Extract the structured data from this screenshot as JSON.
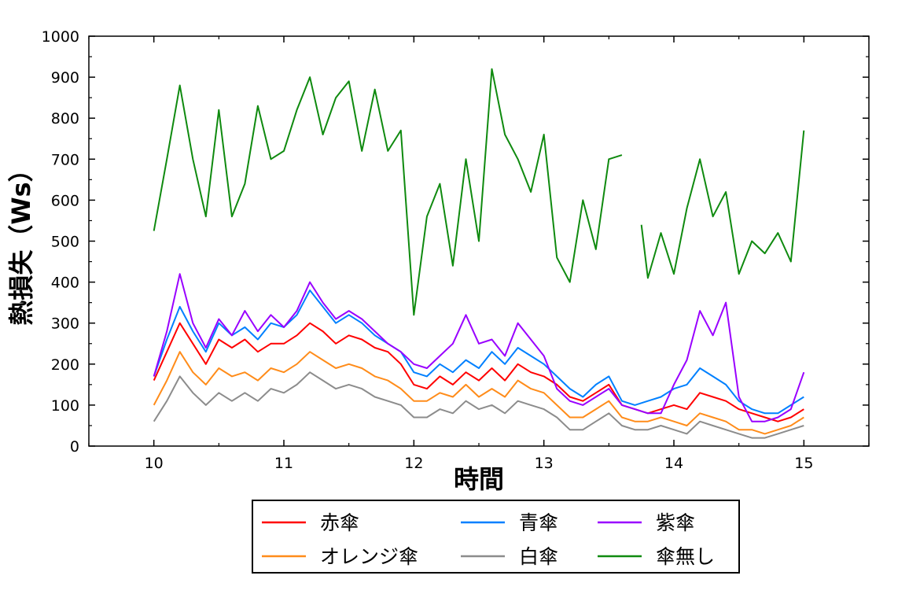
{
  "chart_data": {
    "type": "line",
    "xlabel": "時間",
    "ylabel": "熱損失（Ws）",
    "xlim": [
      9.5,
      15.5
    ],
    "ylim": [
      0,
      1000
    ],
    "xticks": [
      10,
      11,
      12,
      13,
      14,
      15
    ],
    "yticks": [
      0,
      100,
      200,
      300,
      400,
      500,
      600,
      700,
      800,
      900,
      1000
    ],
    "grid": false,
    "legend_position": "bottom-center",
    "series": [
      {
        "name": "赤傘",
        "color": "#ff0000",
        "x": [
          10.0,
          10.1,
          10.2,
          10.3,
          10.4,
          10.5,
          10.6,
          10.7,
          10.8,
          10.9,
          11.0,
          11.1,
          11.2,
          11.3,
          11.4,
          11.5,
          11.6,
          11.7,
          11.8,
          11.9,
          12.0,
          12.1,
          12.2,
          12.3,
          12.4,
          12.5,
          12.6,
          12.7,
          12.8,
          12.9,
          13.0,
          13.1,
          13.2,
          13.3,
          13.4,
          13.5,
          13.6,
          13.7,
          13.8,
          13.9,
          14.0,
          14.1,
          14.2,
          14.3,
          14.4,
          14.5,
          14.6,
          14.7,
          14.8,
          14.9,
          15.0
        ],
        "y": [
          160,
          230,
          300,
          250,
          200,
          260,
          240,
          260,
          230,
          250,
          250,
          270,
          300,
          280,
          250,
          270,
          260,
          240,
          230,
          200,
          150,
          140,
          170,
          150,
          180,
          160,
          190,
          160,
          200,
          180,
          170,
          150,
          120,
          110,
          130,
          150,
          100,
          90,
          80,
          90,
          100,
          90,
          130,
          120,
          110,
          90,
          80,
          70,
          60,
          70,
          90
        ]
      },
      {
        "name": "青傘",
        "color": "#0080ff",
        "x": [
          10.0,
          10.1,
          10.2,
          10.3,
          10.4,
          10.5,
          10.6,
          10.7,
          10.8,
          10.9,
          11.0,
          11.1,
          11.2,
          11.3,
          11.4,
          11.5,
          11.6,
          11.7,
          11.8,
          11.9,
          12.0,
          12.1,
          12.2,
          12.3,
          12.4,
          12.5,
          12.6,
          12.7,
          12.8,
          12.9,
          13.0,
          13.1,
          13.2,
          13.3,
          13.4,
          13.5,
          13.6,
          13.7,
          13.8,
          13.9,
          14.0,
          14.1,
          14.2,
          14.3,
          14.4,
          14.5,
          14.6,
          14.7,
          14.8,
          14.9,
          15.0
        ],
        "y": [
          170,
          260,
          340,
          280,
          230,
          300,
          270,
          290,
          260,
          300,
          290,
          320,
          380,
          340,
          300,
          320,
          300,
          270,
          250,
          230,
          180,
          170,
          200,
          180,
          210,
          190,
          230,
          200,
          240,
          220,
          200,
          170,
          140,
          120,
          150,
          170,
          110,
          100,
          110,
          120,
          140,
          150,
          190,
          170,
          150,
          110,
          90,
          80,
          80,
          100,
          120
        ]
      },
      {
        "name": "紫傘",
        "color": "#9900ff",
        "x": [
          10.0,
          10.1,
          10.2,
          10.3,
          10.4,
          10.5,
          10.6,
          10.7,
          10.8,
          10.9,
          11.0,
          11.1,
          11.2,
          11.3,
          11.4,
          11.5,
          11.6,
          11.7,
          11.8,
          11.9,
          12.0,
          12.1,
          12.2,
          12.3,
          12.4,
          12.5,
          12.6,
          12.7,
          12.8,
          12.9,
          13.0,
          13.1,
          13.2,
          13.3,
          13.4,
          13.5,
          13.6,
          13.7,
          13.8,
          13.9,
          14.0,
          14.1,
          14.2,
          14.3,
          14.4,
          14.5,
          14.6,
          14.7,
          14.8,
          14.9,
          15.0
        ],
        "y": [
          170,
          280,
          420,
          300,
          240,
          310,
          270,
          330,
          280,
          320,
          290,
          330,
          400,
          350,
          310,
          330,
          310,
          280,
          250,
          230,
          200,
          190,
          220,
          250,
          320,
          250,
          260,
          220,
          300,
          260,
          220,
          140,
          110,
          100,
          120,
          140,
          100,
          90,
          80,
          80,
          150,
          210,
          330,
          270,
          350,
          120,
          60,
          60,
          70,
          90,
          180
        ]
      },
      {
        "name": "オレンジ傘",
        "color": "#ff8c1a",
        "x": [
          10.0,
          10.1,
          10.2,
          10.3,
          10.4,
          10.5,
          10.6,
          10.7,
          10.8,
          10.9,
          11.0,
          11.1,
          11.2,
          11.3,
          11.4,
          11.5,
          11.6,
          11.7,
          11.8,
          11.9,
          12.0,
          12.1,
          12.2,
          12.3,
          12.4,
          12.5,
          12.6,
          12.7,
          12.8,
          12.9,
          13.0,
          13.1,
          13.2,
          13.3,
          13.4,
          13.5,
          13.6,
          13.7,
          13.8,
          13.9,
          14.0,
          14.1,
          14.2,
          14.3,
          14.4,
          14.5,
          14.6,
          14.7,
          14.8,
          14.9,
          15.0
        ],
        "y": [
          100,
          160,
          230,
          180,
          150,
          190,
          170,
          180,
          160,
          190,
          180,
          200,
          230,
          210,
          190,
          200,
          190,
          170,
          160,
          140,
          110,
          110,
          130,
          120,
          150,
          120,
          140,
          120,
          160,
          140,
          130,
          100,
          70,
          70,
          90,
          110,
          70,
          60,
          60,
          70,
          60,
          50,
          80,
          70,
          60,
          40,
          40,
          30,
          40,
          50,
          70
        ]
      },
      {
        "name": "白傘",
        "color": "#8c8c8c",
        "x": [
          10.0,
          10.1,
          10.2,
          10.3,
          10.4,
          10.5,
          10.6,
          10.7,
          10.8,
          10.9,
          11.0,
          11.1,
          11.2,
          11.3,
          11.4,
          11.5,
          11.6,
          11.7,
          11.8,
          11.9,
          12.0,
          12.1,
          12.2,
          12.3,
          12.4,
          12.5,
          12.6,
          12.7,
          12.8,
          12.9,
          13.0,
          13.1,
          13.2,
          13.3,
          13.4,
          13.5,
          13.6,
          13.7,
          13.8,
          13.9,
          14.0,
          14.1,
          14.2,
          14.3,
          14.4,
          14.5,
          14.6,
          14.7,
          14.8,
          14.9,
          15.0
        ],
        "y": [
          60,
          110,
          170,
          130,
          100,
          130,
          110,
          130,
          110,
          140,
          130,
          150,
          180,
          160,
          140,
          150,
          140,
          120,
          110,
          100,
          70,
          70,
          90,
          80,
          110,
          90,
          100,
          80,
          110,
          100,
          90,
          70,
          40,
          40,
          60,
          80,
          50,
          40,
          40,
          50,
          40,
          30,
          60,
          50,
          40,
          30,
          20,
          20,
          30,
          40,
          50
        ]
      },
      {
        "name": "傘無し",
        "color": "#0f8a0f",
        "x": [
          10.0,
          10.1,
          10.2,
          10.3,
          10.4,
          10.5,
          10.6,
          10.7,
          10.8,
          10.9,
          11.0,
          11.1,
          11.2,
          11.3,
          11.4,
          11.5,
          11.6,
          11.7,
          11.8,
          11.9,
          12.0,
          12.1,
          12.2,
          12.3,
          12.4,
          12.5,
          12.6,
          12.7,
          12.8,
          12.9,
          13.0,
          13.1,
          13.2,
          13.3,
          13.4,
          13.5,
          13.6,
          13.75,
          13.8,
          13.9,
          14.0,
          14.1,
          14.2,
          14.3,
          14.4,
          14.5,
          14.6,
          14.7,
          14.8,
          14.9,
          15.0
        ],
        "y": [
          525,
          700,
          880,
          700,
          560,
          820,
          560,
          640,
          830,
          700,
          720,
          820,
          900,
          760,
          850,
          890,
          720,
          870,
          720,
          770,
          320,
          560,
          640,
          440,
          700,
          500,
          920,
          760,
          700,
          620,
          760,
          460,
          400,
          600,
          480,
          700,
          710,
          540,
          410,
          520,
          420,
          580,
          700,
          560,
          620,
          420,
          500,
          470,
          520,
          450,
          770
        ]
      }
    ]
  }
}
